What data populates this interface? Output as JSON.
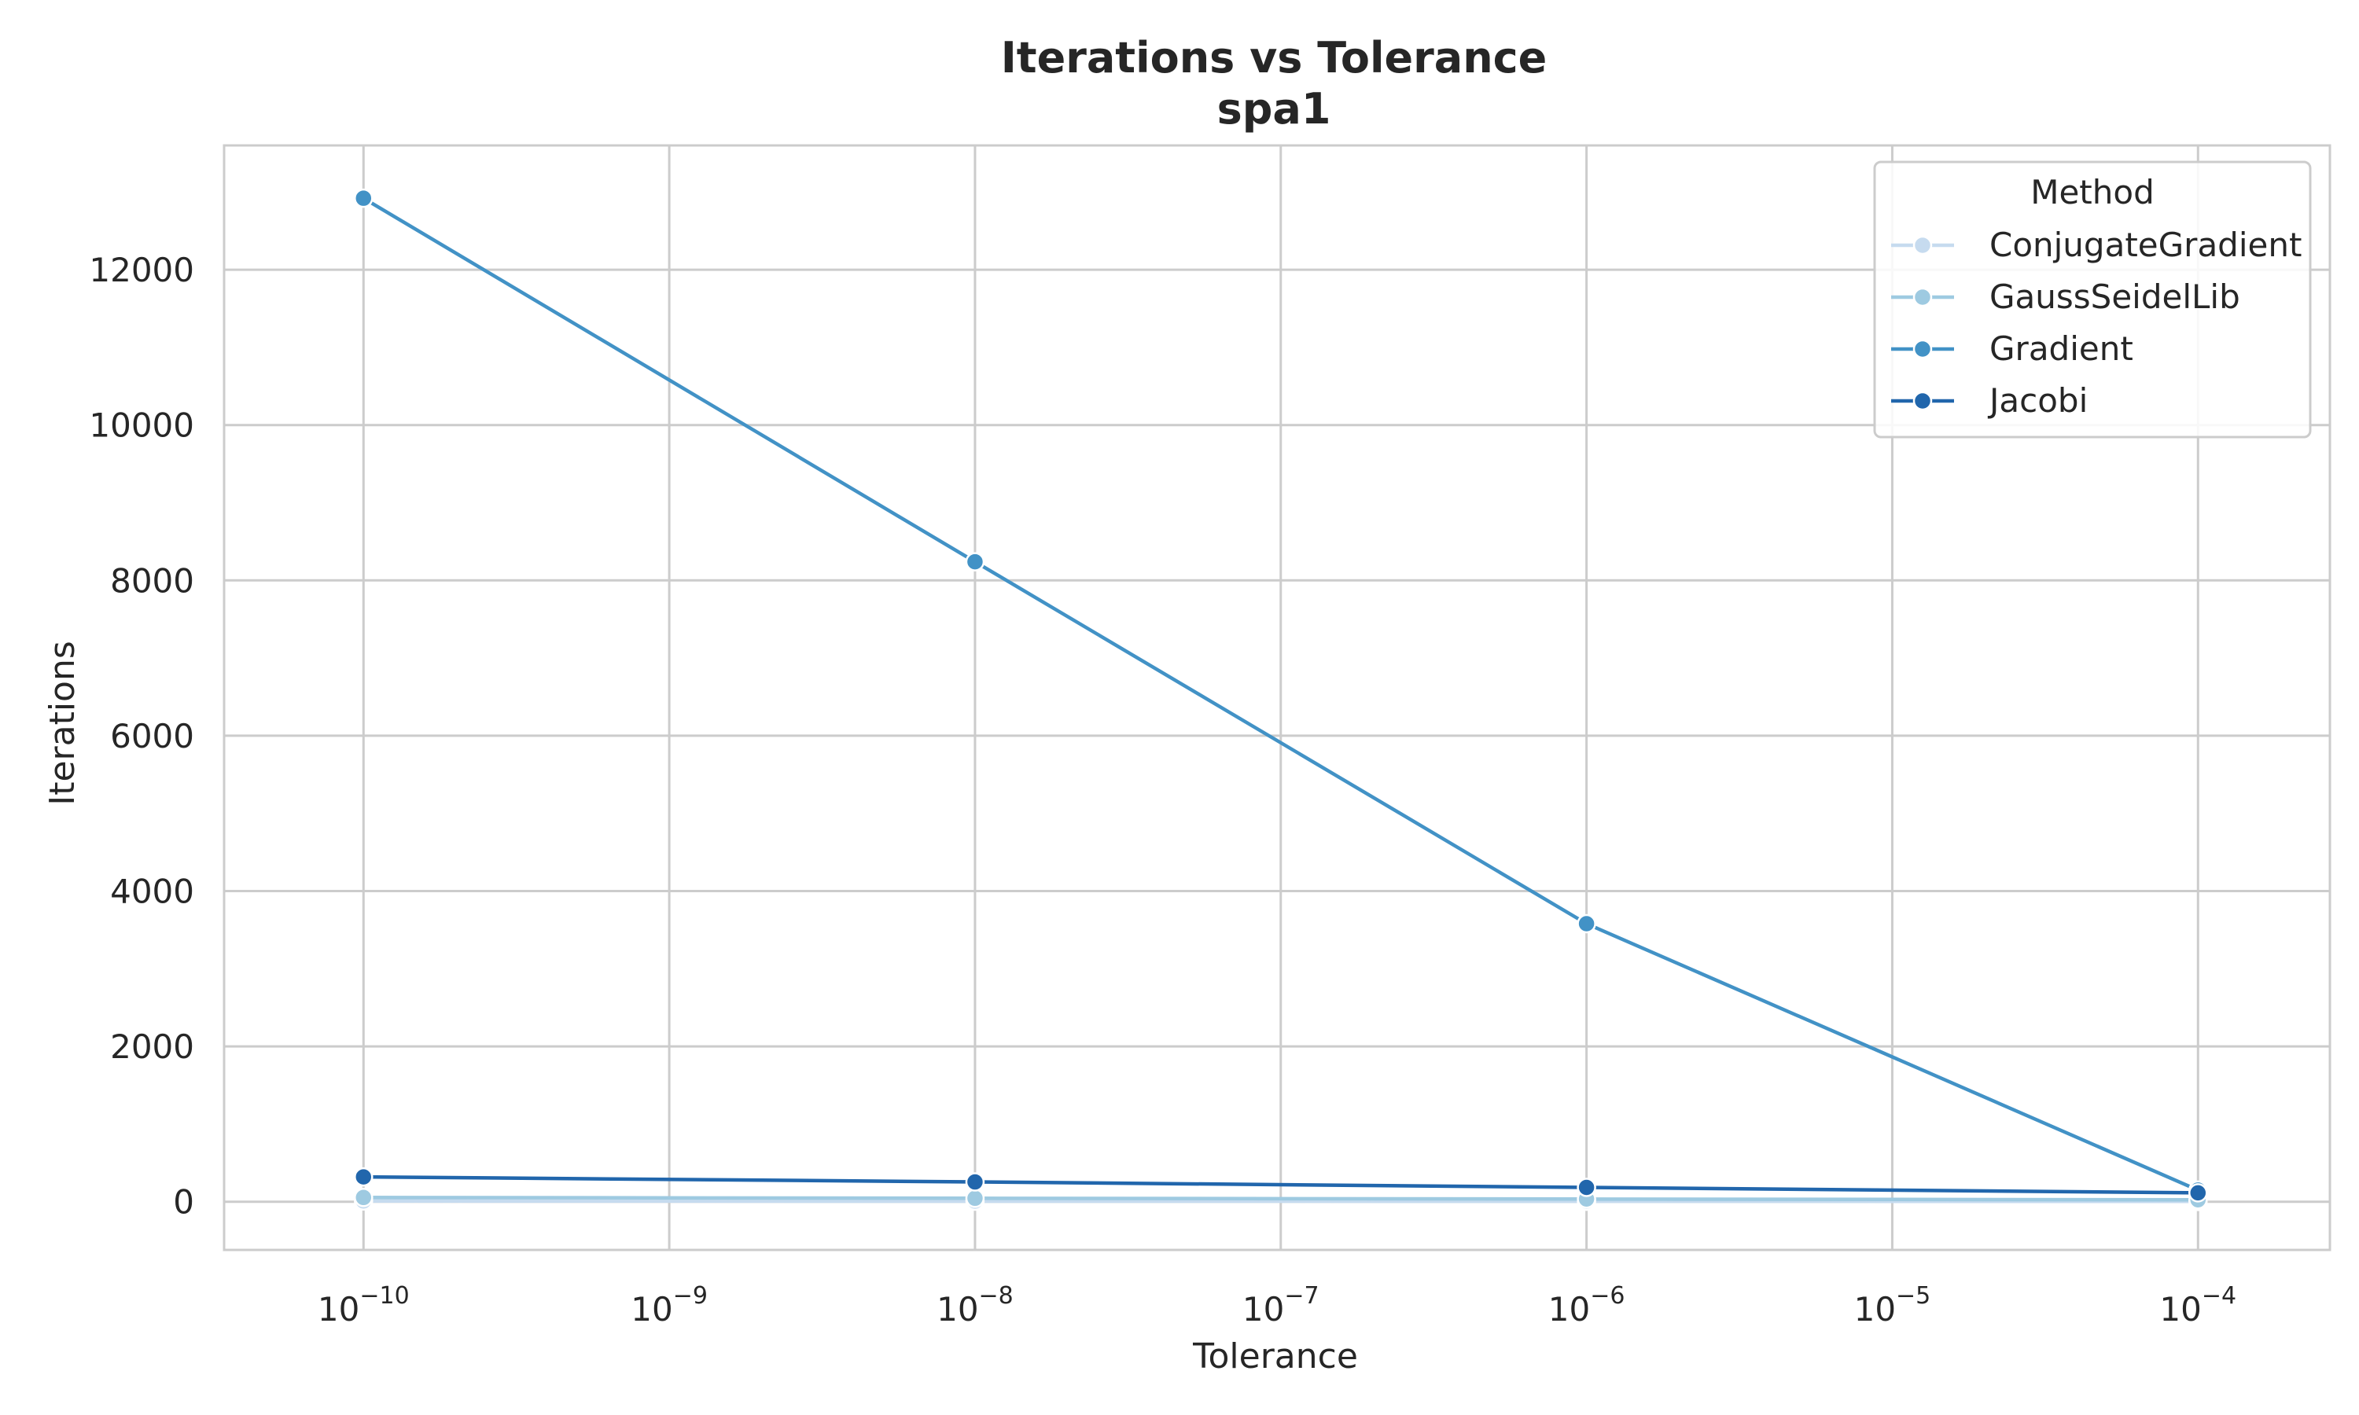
{
  "chart_data": {
    "type": "line",
    "title": "Iterations vs Tolerance",
    "subtitle": "spa1",
    "xlabel": "Tolerance",
    "ylabel": "Iterations",
    "xscale": "log",
    "xlim": [
      3.5e-11,
      0.00027
    ],
    "ylim": [
      -620,
      13600
    ],
    "x": [
      1e-10,
      1e-08,
      1e-06,
      0.0001
    ],
    "x_ticks": [
      {
        "value": 1e-10,
        "base": "10",
        "exp": "−10"
      },
      {
        "value": 1e-09,
        "base": "10",
        "exp": "−9"
      },
      {
        "value": 1e-08,
        "base": "10",
        "exp": "−8"
      },
      {
        "value": 1e-07,
        "base": "10",
        "exp": "−7"
      },
      {
        "value": 1e-06,
        "base": "10",
        "exp": "−6"
      },
      {
        "value": 1e-05,
        "base": "10",
        "exp": "−5"
      },
      {
        "value": 0.0001,
        "base": "10",
        "exp": "−4"
      }
    ],
    "y_ticks": [
      0,
      2000,
      4000,
      6000,
      8000,
      10000,
      12000
    ],
    "grid": true,
    "legend": {
      "title": "Method",
      "position": "top-right"
    },
    "series": [
      {
        "name": "ConjugateGradient",
        "color": "#c6dbef",
        "values": [
          10,
          8,
          6,
          4
        ]
      },
      {
        "name": "GaussSeidelLib",
        "color": "#9ecae1",
        "values": [
          55,
          45,
          35,
          25
        ]
      },
      {
        "name": "Gradient",
        "color": "#4292c6",
        "values": [
          12920,
          8240,
          3580,
          150
        ]
      },
      {
        "name": "Jacobi",
        "color": "#2166ac",
        "values": [
          320,
          255,
          185,
          115
        ]
      }
    ]
  }
}
